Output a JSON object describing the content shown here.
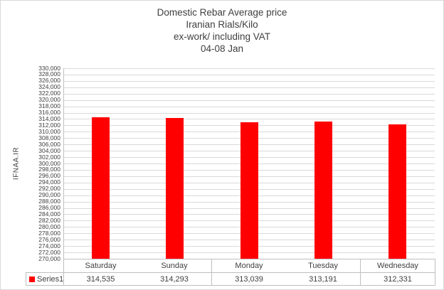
{
  "chart_data": {
    "type": "bar",
    "title_lines": [
      "Domestic Rebar Average price",
      "Iranian Rials/Kilo",
      "ex-work/ including VAT",
      "04-08 Jan"
    ],
    "ylabel": "IFNAA.IR",
    "xlabel": "",
    "categories": [
      "Saturday",
      "Sunday",
      "Monday",
      "Tuesday",
      "Wednesday"
    ],
    "series": [
      {
        "name": "Series1",
        "values": [
          314535,
          314293,
          313039,
          313191,
          312331
        ],
        "values_formatted": [
          "314,535",
          "314,293",
          "313,039",
          "313,191",
          "312,331"
        ],
        "color": "#ff0000"
      }
    ],
    "y_axis": {
      "min": 270000,
      "max": 330000,
      "step": 2000,
      "tick_labels": [
        "330,000",
        "328,000",
        "326,000",
        "324,000",
        "322,000",
        "320,000",
        "318,000",
        "316,000",
        "314,000",
        "312,000",
        "310,000",
        "308,000",
        "306,000",
        "304,000",
        "302,000",
        "300,000",
        "298,000",
        "296,000",
        "294,000",
        "292,000",
        "290,000",
        "288,000",
        "286,000",
        "284,000",
        "282,000",
        "280,000",
        "278,000",
        "276,000",
        "274,000",
        "272,000",
        "270,000"
      ]
    },
    "grid": true,
    "legend_position": "data-table-bottom"
  },
  "colors": {
    "bar": "#ff0000",
    "gridline": "#d9d9d9",
    "axis": "#bfbfbf",
    "table_border": "#bfbfbf",
    "text": "#404040",
    "chart_border": "#d9d9d9",
    "background": "#ffffff"
  }
}
